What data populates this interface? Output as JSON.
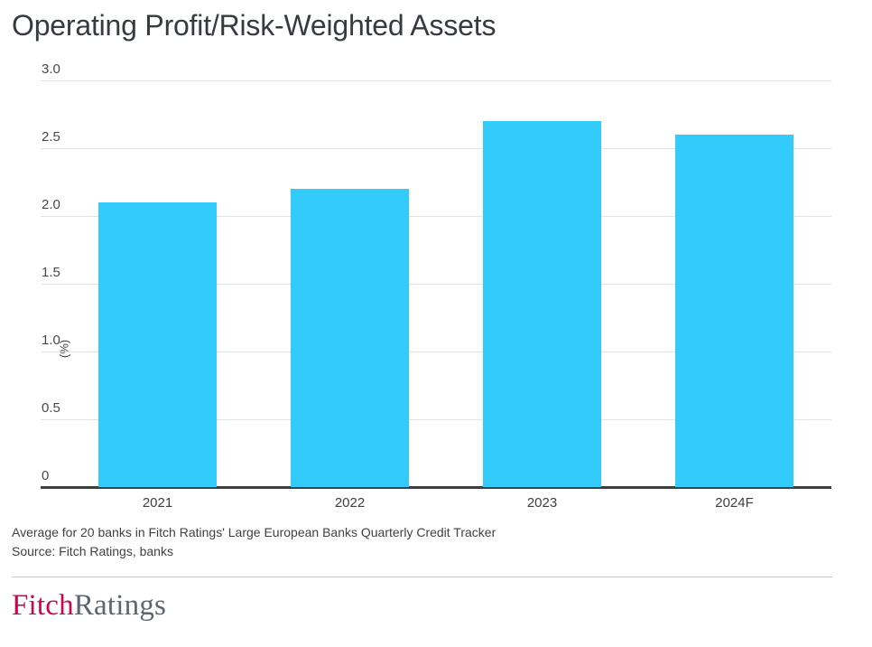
{
  "title": "Operating Profit/Risk-Weighted Assets",
  "chart_data": {
    "type": "bar",
    "categories": [
      "2021",
      "2022",
      "2023",
      "2024F"
    ],
    "values": [
      2.1,
      2.2,
      2.7,
      2.6
    ],
    "title": "Operating Profit/Risk-Weighted Assets",
    "xlabel": "",
    "ylabel": "(%)",
    "ylim": [
      0,
      3.0
    ],
    "yticks": [
      0,
      0.5,
      1.0,
      1.5,
      2.0,
      2.5,
      3.0
    ],
    "ytick_labels": [
      "0",
      "0.5",
      "1.0",
      "1.5",
      "2.0",
      "2.5",
      "3.0"
    ],
    "grid": true,
    "legend_position": "none",
    "bar_color": "#33CCFA"
  },
  "footnotes": [
    "Average for 20 banks in Fitch Ratings' Large European Banks Quarterly Credit Tracker",
    "Source: Fitch Ratings, banks"
  ],
  "logo": {
    "fitch": "Fitch",
    "ratings": "Ratings"
  },
  "colors": {
    "bar": "#33CCFA",
    "gridline": "#E3E3E3",
    "axis_line": "#3E3E3E",
    "title_text": "#363B42",
    "fitch_red": "#C9054F",
    "fitch_gray": "#5B6670"
  }
}
